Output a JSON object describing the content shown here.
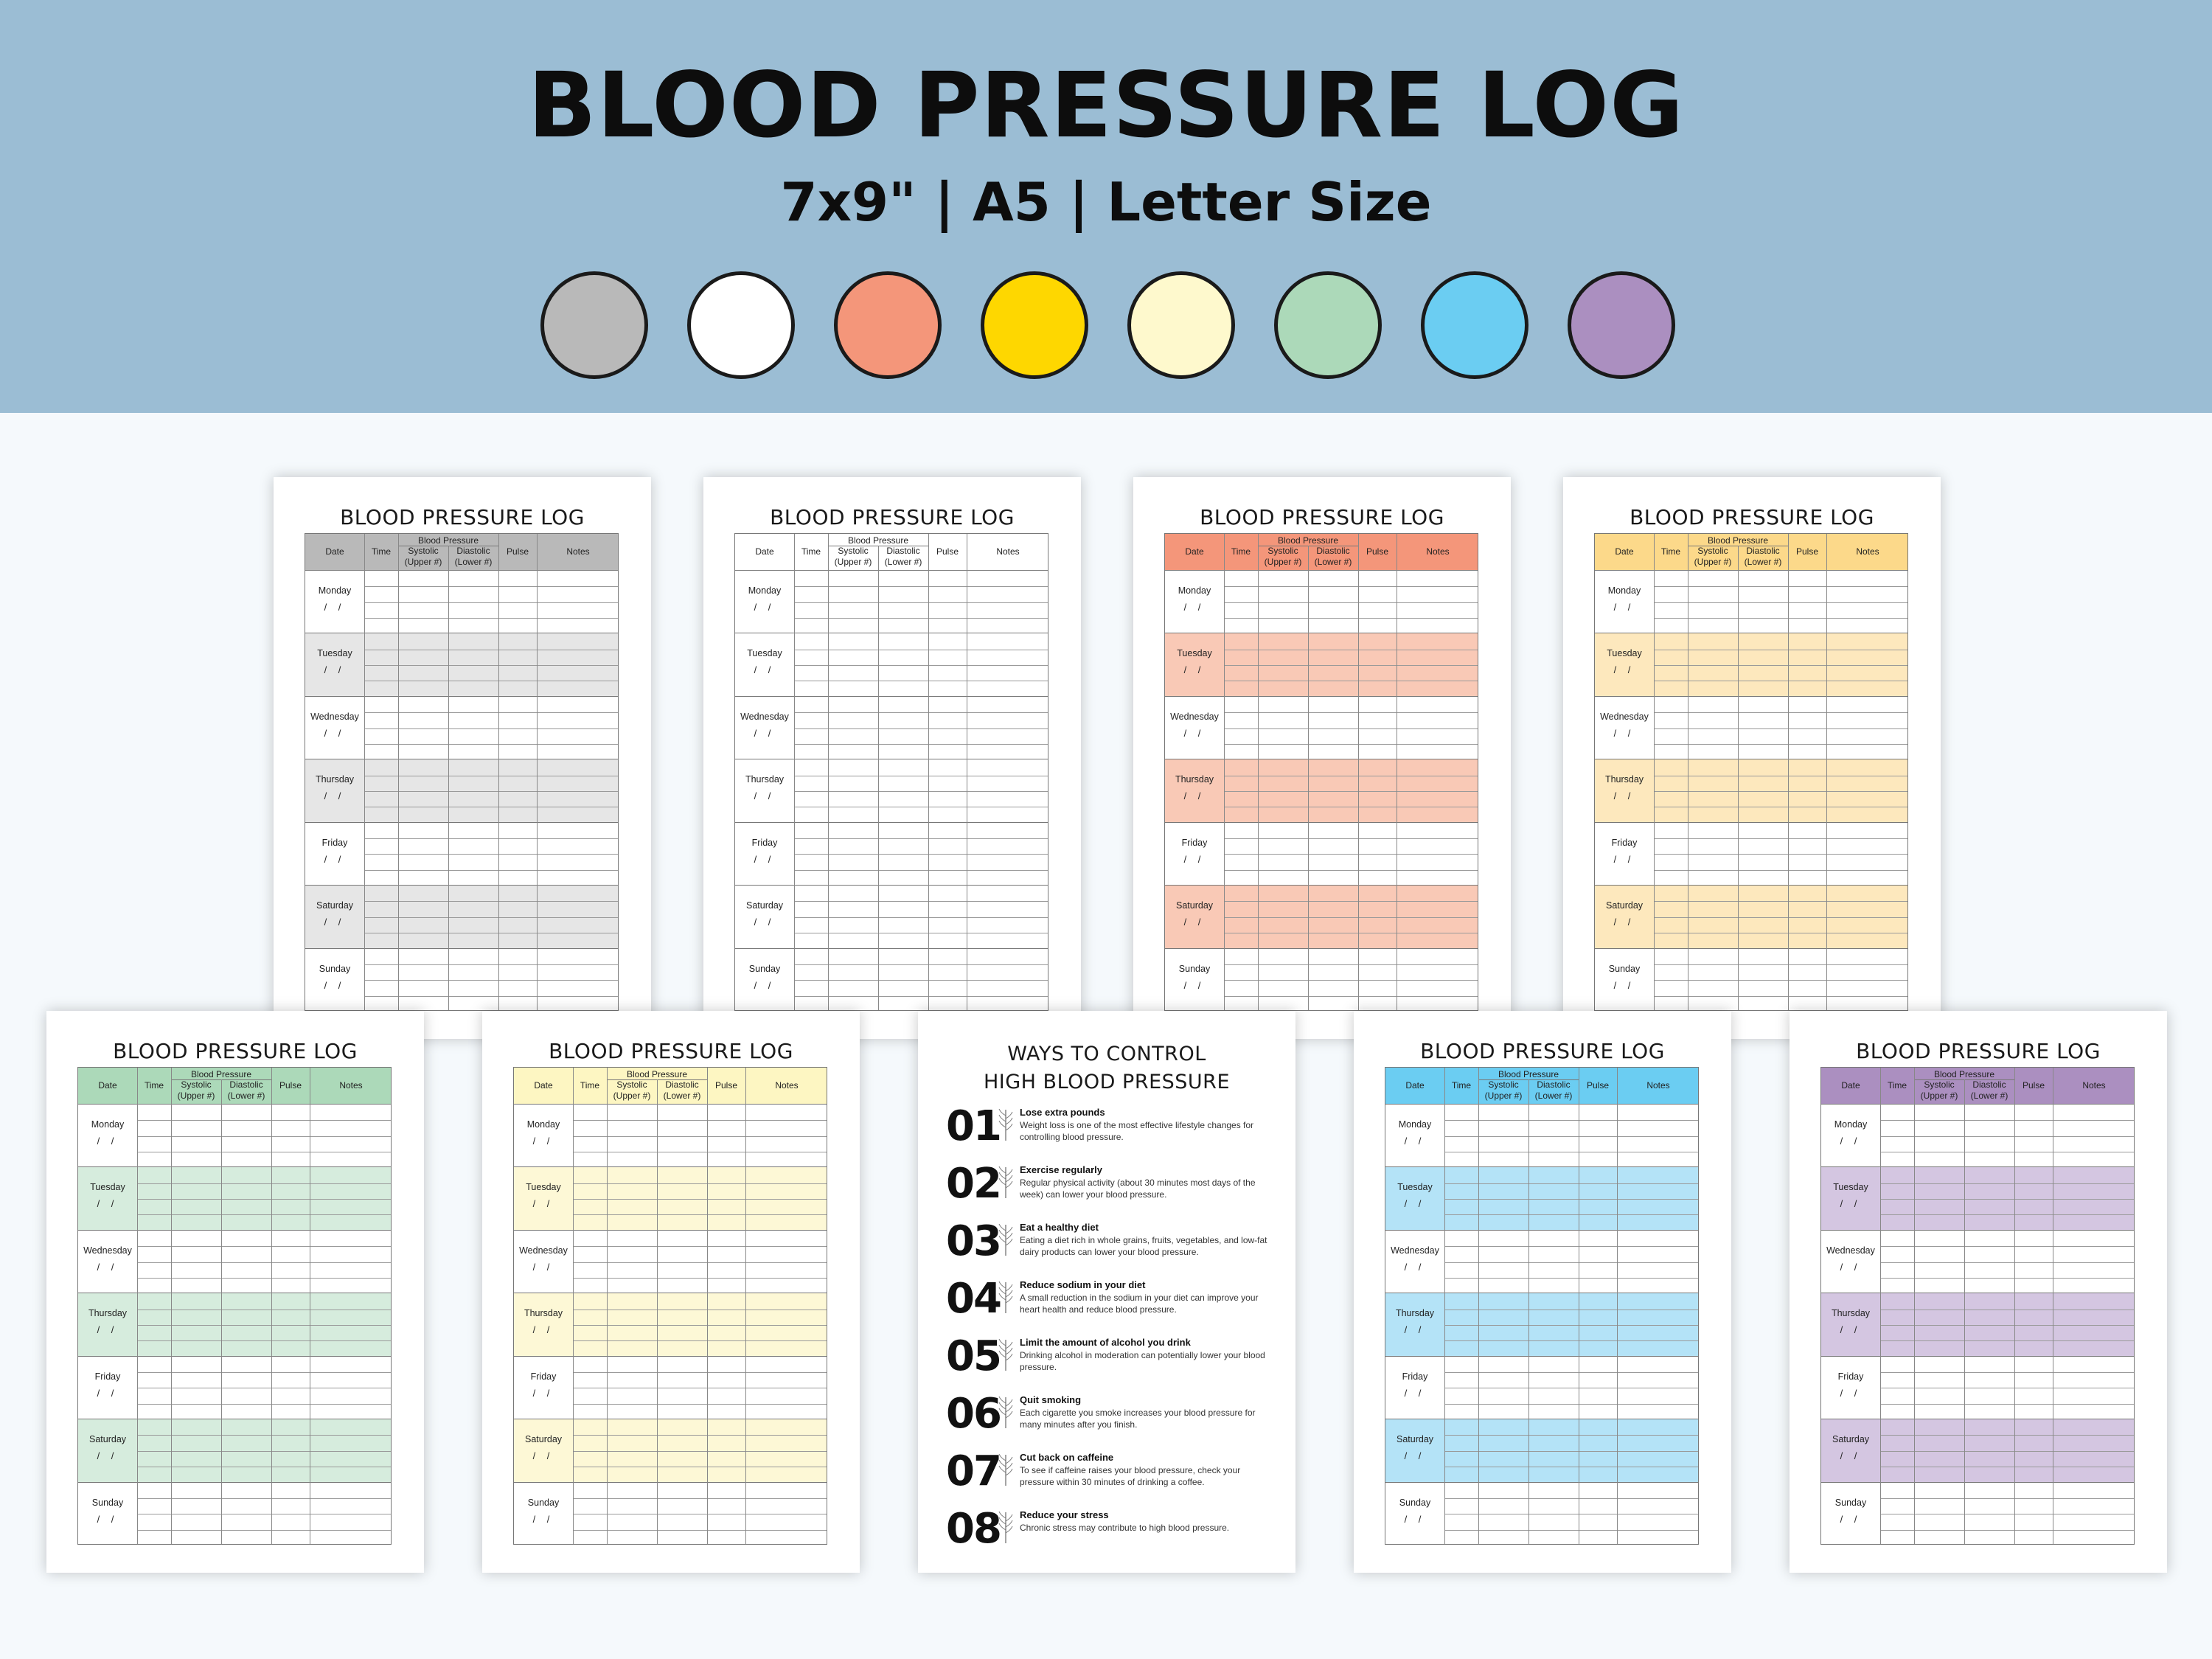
{
  "banner": {
    "title": "BLOOD PRESSURE LOG",
    "subtitle": "7x9\" | A5 | Letter Size"
  },
  "colors": {
    "banner_bg": "#9bbdd4",
    "swatches": [
      "#b9b9b9",
      "#ffffff",
      "#f4967a",
      "#fed700",
      "#fef9cd",
      "#acd9b9",
      "#6bcdf2",
      "#ab8fc0"
    ]
  },
  "sheet": {
    "title": "BLOOD PRESSURE LOG",
    "columns": {
      "date": "Date",
      "time": "Time",
      "bp_group": "Blood Pressure",
      "systolic": "Systolic",
      "systolic_sub": "(Upper #)",
      "diastolic": "Diastolic",
      "diastolic_sub": "(Lower #)",
      "pulse": "Pulse",
      "notes": "Notes"
    },
    "days": [
      "Monday",
      "Tuesday",
      "Wednesday",
      "Thursday",
      "Friday",
      "Saturday",
      "Sunday"
    ],
    "date_placeholder": "/ /"
  },
  "sheets": [
    {
      "theme": "gray",
      "header": "#b9b9b9",
      "band": "#e6e6e6"
    },
    {
      "theme": "white",
      "header": "#ffffff",
      "band": "#ffffff"
    },
    {
      "theme": "salmon",
      "header": "#f4967a",
      "band": "#f9c9b6"
    },
    {
      "theme": "yellow",
      "header": "#fcd98a",
      "band": "#fde8bd"
    },
    {
      "theme": "green",
      "header": "#acd9b9",
      "band": "#d6ecdd"
    },
    {
      "theme": "cream",
      "header": "#fdf6c2",
      "band": "#fdf8d6"
    },
    {
      "theme": "blue",
      "header": "#6bcdf2",
      "band": "#b4e3f7"
    },
    {
      "theme": "purple",
      "header": "#ab8fc0",
      "band": "#d4c6e1"
    }
  ],
  "tips_sheet": {
    "title_line1": "WAYS TO CONTROL",
    "title_line2": "HIGH BLOOD PRESSURE",
    "items": [
      {
        "num": "01",
        "head": "Lose extra pounds",
        "body": "Weight loss is one of the most effective lifestyle changes for controlling blood pressure."
      },
      {
        "num": "02",
        "head": "Exercise regularly",
        "body": "Regular physical activity (about 30 minutes most days of the week) can lower your blood pressure."
      },
      {
        "num": "03",
        "head": "Eat a healthy diet",
        "body": "Eating a diet rich in whole grains, fruits, vegetables, and low-fat dairy products can lower your blood pressure."
      },
      {
        "num": "04",
        "head": "Reduce sodium in your diet",
        "body": "A small reduction in the sodium in your diet can improve your heart health and reduce blood pressure."
      },
      {
        "num": "05",
        "head": "Limit the amount of alcohol you drink",
        "body": "Drinking alcohol in moderation can potentially lower your blood pressure."
      },
      {
        "num": "06",
        "head": "Quit smoking",
        "body": "Each cigarette you smoke increases your blood pressure for many minutes after you finish."
      },
      {
        "num": "07",
        "head": "Cut back on caffeine",
        "body": "To see if caffeine raises your blood pressure, check your pressure within 30 minutes of drinking a coffee."
      },
      {
        "num": "08",
        "head": "Reduce your stress",
        "body": "Chronic stress may contribute to high blood pressure."
      }
    ]
  }
}
